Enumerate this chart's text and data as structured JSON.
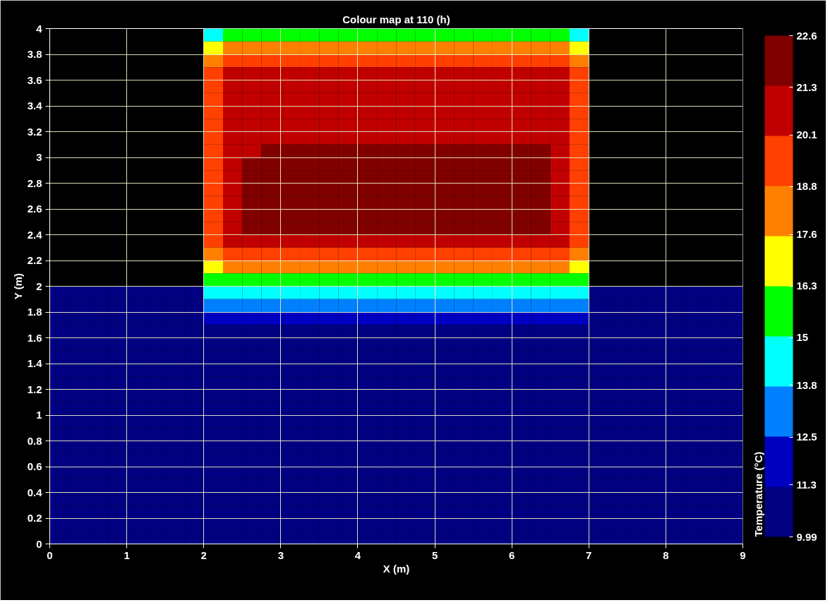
{
  "chart_data": {
    "type": "heatmap",
    "title": "Colour map at 110 (h)",
    "xlabel": "X (m)",
    "ylabel": "Y (m)",
    "clabel": "Temperature (°C)",
    "xlim": [
      0,
      9
    ],
    "xticks": [
      0,
      1,
      2,
      3,
      4,
      5,
      6,
      7,
      8,
      9
    ],
    "ylim": [
      0,
      4
    ],
    "yticks": [
      0,
      0.2,
      0.4,
      0.6,
      0.8,
      1,
      1.2,
      1.4,
      1.6,
      1.8,
      2,
      2.2,
      2.4,
      2.6,
      2.8,
      3,
      3.2,
      3.4,
      3.6,
      3.8,
      4
    ],
    "clim": [
      9.99,
      22.6
    ],
    "cticks": [
      9.99,
      11.3,
      12.5,
      13.8,
      15,
      16.3,
      17.6,
      18.8,
      20.1,
      21.3,
      22.6
    ],
    "colors": [
      "#000080",
      "#0000c0",
      "#0080ff",
      "#00ffff",
      "#00ff00",
      "#ffff00",
      "#ff8000",
      "#ff4000",
      "#c00000",
      "#800000"
    ],
    "grid": true,
    "x": [
      0.125,
      0.375,
      0.625,
      0.875,
      1.125,
      1.375,
      1.625,
      1.875,
      2.125,
      2.375,
      2.625,
      2.875,
      3.125,
      3.375,
      3.625,
      3.875,
      4.125,
      4.375,
      4.625,
      4.875,
      5.125,
      5.375,
      5.625,
      5.875,
      6.125,
      6.375,
      6.625,
      6.875,
      7.125,
      7.375,
      7.625,
      7.875,
      8.125,
      8.375,
      8.625,
      8.875
    ],
    "y": [
      3.95,
      3.85,
      3.75,
      3.65,
      3.55,
      3.45,
      3.35,
      3.25,
      3.15,
      3.05,
      2.95,
      2.85,
      2.75,
      2.65,
      2.55,
      2.45,
      2.35,
      2.25,
      2.15,
      2.05,
      1.95,
      1.85,
      1.75,
      1.65,
      1.55,
      1.45,
      1.35,
      1.25,
      1.15,
      1.05,
      0.95,
      0.85,
      0.75,
      0.65,
      0.55,
      0.45,
      0.35,
      0.25,
      0.15,
      0.05
    ],
    "cells": [
      [
        null,
        null,
        null,
        null,
        null,
        null,
        null,
        null,
        14.5,
        15.5,
        15.5,
        15.5,
        15.5,
        15.5,
        15.5,
        15.5,
        15.5,
        15.5,
        15.5,
        15.5,
        15.5,
        15.5,
        15.5,
        15.5,
        15.5,
        15.5,
        15.5,
        14.5,
        null,
        null,
        null,
        null,
        null,
        null,
        null,
        null
      ],
      [
        null,
        null,
        null,
        null,
        null,
        null,
        null,
        null,
        17,
        18,
        18,
        18,
        18,
        18,
        18,
        18,
        18,
        18,
        18,
        18,
        18,
        18,
        18,
        18,
        18,
        18,
        18,
        17,
        null,
        null,
        null,
        null,
        null,
        null,
        null,
        null
      ],
      [
        null,
        null,
        null,
        null,
        null,
        null,
        null,
        null,
        18,
        19.5,
        19.5,
        19.5,
        19.5,
        19.5,
        19.5,
        19.5,
        19.5,
        19.5,
        19.5,
        19.5,
        19.5,
        19.5,
        19.5,
        19.5,
        19.5,
        19.5,
        19.5,
        18,
        null,
        null,
        null,
        null,
        null,
        null,
        null,
        null
      ],
      [
        null,
        null,
        null,
        null,
        null,
        null,
        null,
        null,
        19.5,
        20.5,
        20.5,
        20.5,
        20.5,
        20.5,
        20.5,
        20.5,
        20.5,
        20.5,
        20.5,
        20.5,
        20.5,
        20.5,
        20.5,
        20.5,
        20.5,
        20.5,
        20.5,
        19.5,
        null,
        null,
        null,
        null,
        null,
        null,
        null,
        null
      ],
      [
        null,
        null,
        null,
        null,
        null,
        null,
        null,
        null,
        19.5,
        20.5,
        20.5,
        20.5,
        20.5,
        20.5,
        20.5,
        20.5,
        20.5,
        20.5,
        20.5,
        20.5,
        20.5,
        20.5,
        20.5,
        20.5,
        20.5,
        20.5,
        20.5,
        19.5,
        null,
        null,
        null,
        null,
        null,
        null,
        null,
        null
      ],
      [
        null,
        null,
        null,
        null,
        null,
        null,
        null,
        null,
        19.5,
        20.5,
        20.5,
        20.5,
        20.5,
        20.5,
        20.5,
        20.5,
        20.5,
        20.5,
        20.5,
        20.5,
        20.5,
        20.5,
        20.5,
        20.5,
        20.5,
        20.5,
        20.5,
        19.5,
        null,
        null,
        null,
        null,
        null,
        null,
        null,
        null
      ],
      [
        null,
        null,
        null,
        null,
        null,
        null,
        null,
        null,
        19.5,
        20.5,
        20.5,
        20.5,
        20.5,
        20.5,
        20.5,
        20.5,
        20.5,
        20.5,
        20.5,
        20.5,
        20.5,
        20.5,
        20.5,
        20.5,
        20.5,
        20.5,
        20.5,
        19.5,
        null,
        null,
        null,
        null,
        null,
        null,
        null,
        null
      ],
      [
        null,
        null,
        null,
        null,
        null,
        null,
        null,
        null,
        19.5,
        20.5,
        20.5,
        20.5,
        20.5,
        20.5,
        20.5,
        20.5,
        20.5,
        20.5,
        20.5,
        20.5,
        20.5,
        20.5,
        20.5,
        20.5,
        20.5,
        20.5,
        20.5,
        19.5,
        null,
        null,
        null,
        null,
        null,
        null,
        null,
        null
      ],
      [
        null,
        null,
        null,
        null,
        null,
        null,
        null,
        null,
        19.5,
        20.5,
        20.5,
        20.5,
        20.5,
        20.5,
        20.5,
        20.5,
        20.5,
        20.5,
        20.5,
        20.5,
        20.5,
        20.5,
        20.5,
        20.5,
        20.5,
        20.5,
        20.5,
        19.5,
        null,
        null,
        null,
        null,
        null,
        null,
        null,
        null
      ],
      [
        null,
        null,
        null,
        null,
        null,
        null,
        null,
        null,
        19.5,
        20.5,
        20.5,
        22,
        22,
        22,
        22,
        22,
        22,
        22,
        22,
        22,
        22,
        22,
        22,
        22,
        22,
        22,
        20.5,
        19.5,
        null,
        null,
        null,
        null,
        null,
        null,
        null,
        null
      ],
      [
        null,
        null,
        null,
        null,
        null,
        null,
        null,
        null,
        19.5,
        20.5,
        22,
        22,
        22,
        22,
        22,
        22,
        22,
        22,
        22,
        22,
        22,
        22,
        22,
        22,
        22,
        22,
        20.5,
        19.5,
        null,
        null,
        null,
        null,
        null,
        null,
        null,
        null
      ],
      [
        null,
        null,
        null,
        null,
        null,
        null,
        null,
        null,
        19.5,
        20.5,
        22,
        22,
        22,
        22,
        22,
        22,
        22,
        22,
        22,
        22,
        22,
        22,
        22,
        22,
        22,
        22,
        20.5,
        19.5,
        null,
        null,
        null,
        null,
        null,
        null,
        null,
        null
      ],
      [
        null,
        null,
        null,
        null,
        null,
        null,
        null,
        null,
        19.5,
        20.5,
        22,
        22,
        22,
        22,
        22,
        22,
        22,
        22,
        22,
        22,
        22,
        22,
        22,
        22,
        22,
        22,
        20.5,
        19.5,
        null,
        null,
        null,
        null,
        null,
        null,
        null,
        null
      ],
      [
        null,
        null,
        null,
        null,
        null,
        null,
        null,
        null,
        19.5,
        20.5,
        22,
        22,
        22,
        22,
        22,
        22,
        22,
        22,
        22,
        22,
        22,
        22,
        22,
        22,
        22,
        22,
        20.5,
        19.5,
        null,
        null,
        null,
        null,
        null,
        null,
        null,
        null
      ],
      [
        null,
        null,
        null,
        null,
        null,
        null,
        null,
        null,
        19.5,
        20.5,
        22,
        22,
        22,
        22,
        22,
        22,
        22,
        22,
        22,
        22,
        22,
        22,
        22,
        22,
        22,
        22,
        20.5,
        19.5,
        null,
        null,
        null,
        null,
        null,
        null,
        null,
        null
      ],
      [
        null,
        null,
        null,
        null,
        null,
        null,
        null,
        null,
        19.5,
        20.5,
        22,
        22,
        22,
        22,
        22,
        22,
        22,
        22,
        22,
        22,
        22,
        22,
        22,
        22,
        22,
        22,
        20.5,
        19.5,
        null,
        null,
        null,
        null,
        null,
        null,
        null,
        null
      ],
      [
        null,
        null,
        null,
        null,
        null,
        null,
        null,
        null,
        19.5,
        20.5,
        20.5,
        20.5,
        20.5,
        20.5,
        20.5,
        20.5,
        20.5,
        20.5,
        20.5,
        20.5,
        20.5,
        20.5,
        20.5,
        20.5,
        20.5,
        20.5,
        20.5,
        19.5,
        null,
        null,
        null,
        null,
        null,
        null,
        null,
        null
      ],
      [
        null,
        null,
        null,
        null,
        null,
        null,
        null,
        null,
        18,
        19.5,
        19.5,
        19.5,
        19.5,
        19.5,
        19.5,
        19.5,
        19.5,
        19.5,
        19.5,
        19.5,
        19.5,
        19.5,
        19.5,
        19.5,
        19.5,
        19.5,
        19.5,
        18,
        null,
        null,
        null,
        null,
        null,
        null,
        null,
        null
      ],
      [
        null,
        null,
        null,
        null,
        null,
        null,
        null,
        null,
        17,
        18,
        18,
        18,
        18,
        18,
        18,
        18,
        18,
        18,
        18,
        18,
        18,
        18,
        18,
        18,
        18,
        18,
        18,
        17,
        null,
        null,
        null,
        null,
        null,
        null,
        null,
        null
      ],
      [
        null,
        null,
        null,
        null,
        null,
        null,
        null,
        null,
        15.5,
        15.5,
        15.5,
        15.5,
        15.5,
        15.5,
        15.5,
        15.5,
        15.5,
        15.5,
        15.5,
        15.5,
        15.5,
        15.5,
        15.5,
        15.5,
        15.5,
        15.5,
        15.5,
        15.5,
        null,
        null,
        null,
        null,
        null,
        null,
        null,
        null
      ],
      [
        10.5,
        10.5,
        10.5,
        10.5,
        10.5,
        10.5,
        10.5,
        10.5,
        14.5,
        14.5,
        14.5,
        14.5,
        14.5,
        14.5,
        14.5,
        14.5,
        14.5,
        14.5,
        14.5,
        14.5,
        14.5,
        14.5,
        14.5,
        14.5,
        14.5,
        14.5,
        14.5,
        14.5,
        10.5,
        10.5,
        10.5,
        10.5,
        10.5,
        10.5,
        10.5,
        10.5
      ],
      [
        10.5,
        10.5,
        10.5,
        10.5,
        10.5,
        10.5,
        10.5,
        10.5,
        13,
        13,
        13,
        13,
        13,
        13,
        13,
        13,
        13,
        13,
        13,
        13,
        13,
        13,
        13,
        13,
        13,
        13,
        13,
        13,
        10.5,
        10.5,
        10.5,
        10.5,
        10.5,
        10.5,
        10.5,
        10.5
      ],
      [
        10.5,
        10.5,
        10.5,
        10.5,
        10.5,
        10.5,
        10.5,
        10.5,
        12,
        12,
        12,
        12,
        12,
        12,
        12,
        12,
        12,
        12,
        12,
        12,
        12,
        12,
        12,
        12,
        12,
        12,
        12,
        12,
        10.5,
        10.5,
        10.5,
        10.5,
        10.5,
        10.5,
        10.5,
        10.5
      ],
      [
        10.5,
        10.5,
        10.5,
        10.5,
        10.5,
        10.5,
        10.5,
        10.5,
        10.5,
        10.5,
        10.5,
        10.5,
        10.5,
        10.5,
        10.5,
        10.5,
        10.5,
        10.5,
        10.5,
        10.5,
        10.5,
        10.5,
        10.5,
        10.5,
        10.5,
        10.5,
        10.5,
        10.5,
        10.5,
        10.5,
        10.5,
        10.5,
        10.5,
        10.5,
        10.5,
        10.5
      ],
      [
        10.5,
        10.5,
        10.5,
        10.5,
        10.5,
        10.5,
        10.5,
        10.5,
        10.5,
        10.5,
        10.5,
        10.5,
        10.5,
        10.5,
        10.5,
        10.5,
        10.5,
        10.5,
        10.5,
        10.5,
        10.5,
        10.5,
        10.5,
        10.5,
        10.5,
        10.5,
        10.5,
        10.5,
        10.5,
        10.5,
        10.5,
        10.5,
        10.5,
        10.5,
        10.5,
        10.5
      ],
      [
        10.5,
        10.5,
        10.5,
        10.5,
        10.5,
        10.5,
        10.5,
        10.5,
        10.5,
        10.5,
        10.5,
        10.5,
        10.5,
        10.5,
        10.5,
        10.5,
        10.5,
        10.5,
        10.5,
        10.5,
        10.5,
        10.5,
        10.5,
        10.5,
        10.5,
        10.5,
        10.5,
        10.5,
        10.5,
        10.5,
        10.5,
        10.5,
        10.5,
        10.5,
        10.5,
        10.5
      ],
      [
        10.5,
        10.5,
        10.5,
        10.5,
        10.5,
        10.5,
        10.5,
        10.5,
        10.5,
        10.5,
        10.5,
        10.5,
        10.5,
        10.5,
        10.5,
        10.5,
        10.5,
        10.5,
        10.5,
        10.5,
        10.5,
        10.5,
        10.5,
        10.5,
        10.5,
        10.5,
        10.5,
        10.5,
        10.5,
        10.5,
        10.5,
        10.5,
        10.5,
        10.5,
        10.5,
        10.5
      ],
      [
        10.5,
        10.5,
        10.5,
        10.5,
        10.5,
        10.5,
        10.5,
        10.5,
        10.5,
        10.5,
        10.5,
        10.5,
        10.5,
        10.5,
        10.5,
        10.5,
        10.5,
        10.5,
        10.5,
        10.5,
        10.5,
        10.5,
        10.5,
        10.5,
        10.5,
        10.5,
        10.5,
        10.5,
        10.5,
        10.5,
        10.5,
        10.5,
        10.5,
        10.5,
        10.5,
        10.5
      ],
      [
        10.5,
        10.5,
        10.5,
        10.5,
        10.5,
        10.5,
        10.5,
        10.5,
        10.5,
        10.5,
        10.5,
        10.5,
        10.5,
        10.5,
        10.5,
        10.5,
        10.5,
        10.5,
        10.5,
        10.5,
        10.5,
        10.5,
        10.5,
        10.5,
        10.5,
        10.5,
        10.5,
        10.5,
        10.5,
        10.5,
        10.5,
        10.5,
        10.5,
        10.5,
        10.5,
        10.5
      ],
      [
        10.5,
        10.5,
        10.5,
        10.5,
        10.5,
        10.5,
        10.5,
        10.5,
        10.5,
        10.5,
        10.5,
        10.5,
        10.5,
        10.5,
        10.5,
        10.5,
        10.5,
        10.5,
        10.5,
        10.5,
        10.5,
        10.5,
        10.5,
        10.5,
        10.5,
        10.5,
        10.5,
        10.5,
        10.5,
        10.5,
        10.5,
        10.5,
        10.5,
        10.5,
        10.5,
        10.5
      ],
      [
        10.5,
        10.5,
        10.5,
        10.5,
        10.5,
        10.5,
        10.5,
        10.5,
        10.5,
        10.5,
        10.5,
        10.5,
        10.5,
        10.5,
        10.5,
        10.5,
        10.5,
        10.5,
        10.5,
        10.5,
        10.5,
        10.5,
        10.5,
        10.5,
        10.5,
        10.5,
        10.5,
        10.5,
        10.5,
        10.5,
        10.5,
        10.5,
        10.5,
        10.5,
        10.5,
        10.5
      ],
      [
        10.5,
        10.5,
        10.5,
        10.5,
        10.5,
        10.5,
        10.5,
        10.5,
        10.5,
        10.5,
        10.5,
        10.5,
        10.5,
        10.5,
        10.5,
        10.5,
        10.5,
        10.5,
        10.5,
        10.5,
        10.5,
        10.5,
        10.5,
        10.5,
        10.5,
        10.5,
        10.5,
        10.5,
        10.5,
        10.5,
        10.5,
        10.5,
        10.5,
        10.5,
        10.5,
        10.5
      ],
      [
        10.5,
        10.5,
        10.5,
        10.5,
        10.5,
        10.5,
        10.5,
        10.5,
        10.5,
        10.5,
        10.5,
        10.5,
        10.5,
        10.5,
        10.5,
        10.5,
        10.5,
        10.5,
        10.5,
        10.5,
        10.5,
        10.5,
        10.5,
        10.5,
        10.5,
        10.5,
        10.5,
        10.5,
        10.5,
        10.5,
        10.5,
        10.5,
        10.5,
        10.5,
        10.5,
        10.5
      ],
      [
        10.5,
        10.5,
        10.5,
        10.5,
        10.5,
        10.5,
        10.5,
        10.5,
        10.5,
        10.5,
        10.5,
        10.5,
        10.5,
        10.5,
        10.5,
        10.5,
        10.5,
        10.5,
        10.5,
        10.5,
        10.5,
        10.5,
        10.5,
        10.5,
        10.5,
        10.5,
        10.5,
        10.5,
        10.5,
        10.5,
        10.5,
        10.5,
        10.5,
        10.5,
        10.5,
        10.5
      ],
      [
        10.5,
        10.5,
        10.5,
        10.5,
        10.5,
        10.5,
        10.5,
        10.5,
        10.5,
        10.5,
        10.5,
        10.5,
        10.5,
        10.5,
        10.5,
        10.5,
        10.5,
        10.5,
        10.5,
        10.5,
        10.5,
        10.5,
        10.5,
        10.5,
        10.5,
        10.5,
        10.5,
        10.5,
        10.5,
        10.5,
        10.5,
        10.5,
        10.5,
        10.5,
        10.5,
        10.5
      ],
      [
        10.5,
        10.5,
        10.5,
        10.5,
        10.5,
        10.5,
        10.5,
        10.5,
        10.5,
        10.5,
        10.5,
        10.5,
        10.5,
        10.5,
        10.5,
        10.5,
        10.5,
        10.5,
        10.5,
        10.5,
        10.5,
        10.5,
        10.5,
        10.5,
        10.5,
        10.5,
        10.5,
        10.5,
        10.5,
        10.5,
        10.5,
        10.5,
        10.5,
        10.5,
        10.5,
        10.5
      ],
      [
        10.5,
        10.5,
        10.5,
        10.5,
        10.5,
        10.5,
        10.5,
        10.5,
        10.5,
        10.5,
        10.5,
        10.5,
        10.5,
        10.5,
        10.5,
        10.5,
        10.5,
        10.5,
        10.5,
        10.5,
        10.5,
        10.5,
        10.5,
        10.5,
        10.5,
        10.5,
        10.5,
        10.5,
        10.5,
        10.5,
        10.5,
        10.5,
        10.5,
        10.5,
        10.5,
        10.5
      ],
      [
        10.5,
        10.5,
        10.5,
        10.5,
        10.5,
        10.5,
        10.5,
        10.5,
        10.5,
        10.5,
        10.5,
        10.5,
        10.5,
        10.5,
        10.5,
        10.5,
        10.5,
        10.5,
        10.5,
        10.5,
        10.5,
        10.5,
        10.5,
        10.5,
        10.5,
        10.5,
        10.5,
        10.5,
        10.5,
        10.5,
        10.5,
        10.5,
        10.5,
        10.5,
        10.5,
        10.5
      ],
      [
        10.5,
        10.5,
        10.5,
        10.5,
        10.5,
        10.5,
        10.5,
        10.5,
        10.5,
        10.5,
        10.5,
        10.5,
        10.5,
        10.5,
        10.5,
        10.5,
        10.5,
        10.5,
        10.5,
        10.5,
        10.5,
        10.5,
        10.5,
        10.5,
        10.5,
        10.5,
        10.5,
        10.5,
        10.5,
        10.5,
        10.5,
        10.5,
        10.5,
        10.5,
        10.5,
        10.5
      ],
      [
        10.5,
        10.5,
        10.5,
        10.5,
        10.5,
        10.5,
        10.5,
        10.5,
        10.5,
        10.5,
        10.5,
        10.5,
        10.5,
        10.5,
        10.5,
        10.5,
        10.5,
        10.5,
        10.5,
        10.5,
        10.5,
        10.5,
        10.5,
        10.5,
        10.5,
        10.5,
        10.5,
        10.5,
        10.5,
        10.5,
        10.5,
        10.5,
        10.5,
        10.5,
        10.5,
        10.5
      ]
    ]
  }
}
